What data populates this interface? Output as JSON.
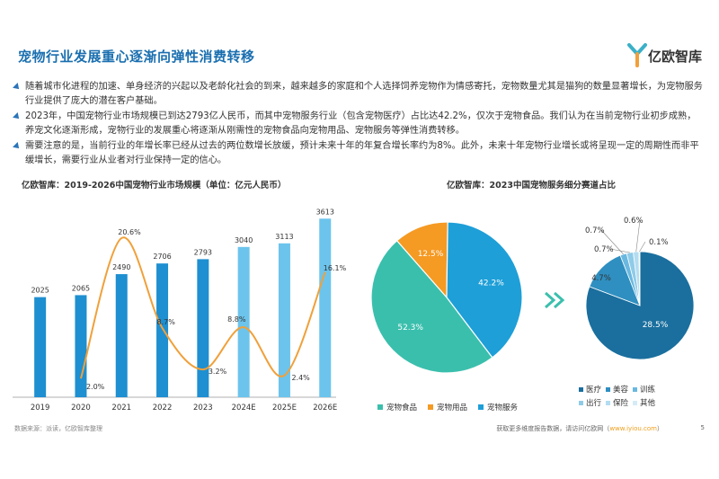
{
  "page": {
    "title": "宠物行业发展重心逐渐向弹性消费转移",
    "logo_text": "亿欧智库",
    "bullets": [
      "随着城市化进程的加速、单身经济的兴起以及老龄化社会的到来，越来越多的家庭和个人选择饲养宠物作为情感寄托，宠物数量尤其是猫狗的数量显著增长，为宠物服务行业提供了庞大的潜在客户基础。",
      "2023年，中国宠物行业市场规模已到达2793亿人民币，而其中宠物服务行业（包含宠物医疗）占比达42.2%，仅次于宠物食品。我们认为在当前宠物行业初步成熟，养宠文化逐渐形成，宠物行业的发展重心将逐渐从刚需性的宠物食品向宠物用品、宠物服务等弹性消费转移。",
      "需要注意的是，当前行业的年增长率已经从过去的两位数增长放缓，预计未来十年的年复合增长率约为8%。此外，未来十年宠物行业增长或将呈现一定的周期性而非平缓增长，需要行业从业者对行业保持一定的信心。"
    ],
    "footer_source": "数据来源：派读，亿欧智库整理",
    "footer_more": "获取更多维度报告数据，请访问亿欧网（",
    "footer_url": "www.iyiou.com",
    "footer_close": "）",
    "page_number": "5",
    "colors": {
      "title": "#1a6fb0",
      "bar_actual": "#1e8fd0",
      "bar_forecast": "#6cc4ec",
      "growth_line": "#f0a03a",
      "pie_food": "#3bbfad",
      "pie_supplies": "#f59a23",
      "pie_service": "#1e9fd8",
      "sub_medical": "#1a6f9e",
      "sub_beauty": "#2f8fc0",
      "sub_training": "#6ab8e0",
      "sub_travel": "#8fcbe8",
      "sub_insurance": "#b3dcf0",
      "sub_other": "#d5ebf7"
    }
  },
  "chart_data": [
    {
      "type": "bar",
      "title": "亿欧智库：2019-2026中国宠物行业市场规模（单位：亿元人民币）",
      "categories": [
        "2019",
        "2020",
        "2021",
        "2022",
        "2023",
        "2024E",
        "2025E",
        "2026E"
      ],
      "values": [
        2025,
        2065,
        2490,
        2706,
        2793,
        3040,
        3113,
        3613
      ],
      "value_labels": [
        "2025",
        "2065",
        "2490",
        "2706",
        "2793",
        "3040",
        "3113",
        "3613"
      ],
      "forecast_from_index": 5,
      "growth_series": {
        "type": "line",
        "smooth": true,
        "x": [
          "2020",
          "2021",
          "2022",
          "2023",
          "2024E",
          "2025E",
          "2026E"
        ],
        "values": [
          2.0,
          20.6,
          8.7,
          3.2,
          8.8,
          2.4,
          16.1
        ],
        "labels": [
          "2.0%",
          "20.6%",
          "8.7%",
          "3.2%",
          "8.8%",
          "2.4%",
          "16.1%"
        ]
      },
      "ylim": [
        0,
        4000
      ],
      "growth_ylim": [
        0,
        25
      ],
      "grid": false
    },
    {
      "type": "pie",
      "title": "亿欧智库：2023中国宠物服务细分赛道占比",
      "slices": [
        {
          "name": "宠物食品",
          "value": 52.3,
          "label": "52.3%"
        },
        {
          "name": "宠物用品",
          "value": 12.5,
          "label": "12.5%"
        },
        {
          "name": "宠物服务",
          "value": 42.2,
          "label": "42.2%"
        }
      ],
      "legend_position": "bottom"
    },
    {
      "type": "pie",
      "slices": [
        {
          "name": "医疗",
          "value": 28.5,
          "label": "28.5%"
        },
        {
          "name": "美容",
          "value": 4.7,
          "label": "4.7%"
        },
        {
          "name": "训练",
          "value": 0.7,
          "label": "0.7%"
        },
        {
          "name": "出行",
          "value": 0.7,
          "label": "0.7%"
        },
        {
          "name": "保险",
          "value": 0.6,
          "label": "0.6%"
        },
        {
          "name": "其他",
          "value": 0.1,
          "label": "0.1%"
        }
      ],
      "legend_position": "bottom"
    }
  ]
}
